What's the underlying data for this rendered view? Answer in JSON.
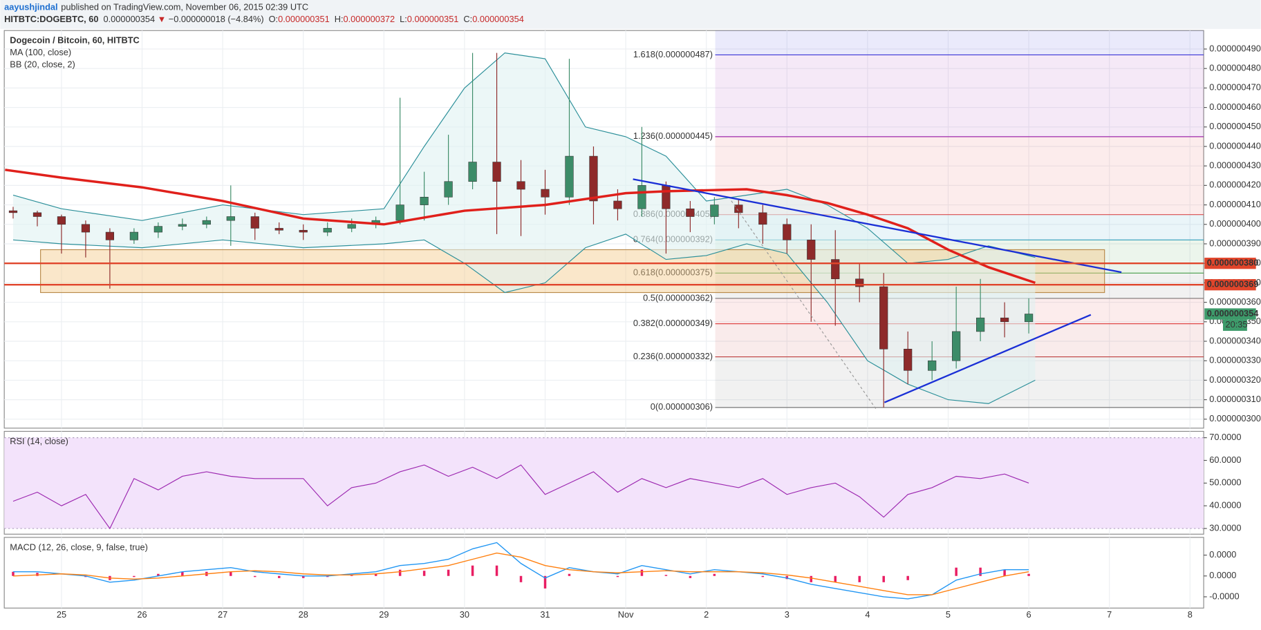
{
  "header": {
    "author": "aayushjindal",
    "published": "published on TradingView.com, November 06, 2015 02:39 UTC",
    "symbol": "HITBTC:DOGEBTC, 60",
    "last": "0.000000354",
    "direction": "▼",
    "change": "−0.000000018 (−4.84%)",
    "ohlc": [
      {
        "label": "O:",
        "value": "0.000000351"
      },
      {
        "label": "H:",
        "value": "0.000000372"
      },
      {
        "label": "L:",
        "value": "0.000000351"
      },
      {
        "label": "C:",
        "value": "0.000000354"
      }
    ]
  },
  "chart_data": [
    {
      "type": "candlestick",
      "title": "Dogecoin / Bitcoin, 60, HITBTC",
      "xlim": [
        -0.71,
        14.17
      ],
      "xticks": [
        {
          "value": 0,
          "label": "25"
        },
        {
          "value": 1,
          "label": "26"
        },
        {
          "value": 2,
          "label": "27"
        },
        {
          "value": 3,
          "label": "28"
        },
        {
          "value": 4,
          "label": "29"
        },
        {
          "value": 5,
          "label": "30"
        },
        {
          "value": 6,
          "label": "31"
        },
        {
          "value": 7,
          "label": "Nov"
        },
        {
          "value": 8,
          "label": "2"
        },
        {
          "value": 9,
          "label": "3"
        },
        {
          "value": 10,
          "label": "4"
        },
        {
          "value": 11,
          "label": "5"
        },
        {
          "value": 12,
          "label": "6"
        },
        {
          "value": 13,
          "label": "7"
        },
        {
          "value": 14,
          "label": "8"
        }
      ],
      "ylim": [
        2.954e-07,
        4.995e-07
      ],
      "yticks": [
        {
          "value": 3e-07,
          "label": "0.000000300"
        },
        {
          "value": 3.1e-07,
          "label": "0.000000310"
        },
        {
          "value": 3.2e-07,
          "label": "0.000000320"
        },
        {
          "value": 3.3e-07,
          "label": "0.000000330"
        },
        {
          "value": 3.4e-07,
          "label": "0.000000340"
        },
        {
          "value": 3.5e-07,
          "label": "0.000000350"
        },
        {
          "value": 3.6e-07,
          "label": "0.000000360"
        },
        {
          "value": 3.7e-07,
          "label": "0.000000370"
        },
        {
          "value": 3.8e-07,
          "label": "0.000000380"
        },
        {
          "value": 3.9e-07,
          "label": "0.000000390"
        },
        {
          "value": 4e-07,
          "label": "0.000000400"
        },
        {
          "value": 4.1e-07,
          "label": "0.000000410"
        },
        {
          "value": 4.2e-07,
          "label": "0.000000420"
        },
        {
          "value": 4.3e-07,
          "label": "0.000000430"
        },
        {
          "value": 4.4e-07,
          "label": "0.000000440"
        },
        {
          "value": 4.5e-07,
          "label": "0.000000450"
        },
        {
          "value": 4.6e-07,
          "label": "0.000000460"
        },
        {
          "value": 4.7e-07,
          "label": "0.000000470"
        },
        {
          "value": 4.8e-07,
          "label": "0.000000480"
        },
        {
          "value": 4.9e-07,
          "label": "0.000000490"
        }
      ],
      "grid": true,
      "up_color": "#3c8c68",
      "down_color": "#8e2a2a",
      "x": [
        -0.6,
        -0.3,
        0.0,
        0.3,
        0.6,
        0.9,
        1.2,
        1.5,
        1.8,
        2.1,
        2.4,
        2.7,
        3.0,
        3.3,
        3.6,
        3.9,
        4.2,
        4.5,
        4.8,
        5.1,
        5.4,
        5.7,
        6.0,
        6.3,
        6.6,
        6.9,
        7.2,
        7.5,
        7.8,
        8.1,
        8.4,
        8.7,
        9.0,
        9.3,
        9.6,
        9.9,
        10.2,
        10.5,
        10.8,
        11.1,
        11.4,
        11.7,
        12.0
      ],
      "open": [
        4.07e-07,
        4.06e-07,
        4.04e-07,
        4e-07,
        3.96e-07,
        3.92e-07,
        3.96e-07,
        3.99e-07,
        4e-07,
        4.02e-07,
        4.04e-07,
        3.98e-07,
        3.97e-07,
        3.96e-07,
        3.98e-07,
        4e-07,
        4.02e-07,
        4.1e-07,
        4.14e-07,
        4.22e-07,
        4.32e-07,
        4.22e-07,
        4.18e-07,
        4.14e-07,
        4.35e-07,
        4.12e-07,
        4.08e-07,
        4.2e-07,
        4.08e-07,
        4.04e-07,
        4.1e-07,
        4.06e-07,
        4e-07,
        3.92e-07,
        3.82e-07,
        3.72e-07,
        3.68e-07,
        3.36e-07,
        3.25e-07,
        3.3e-07,
        3.45e-07,
        3.52e-07,
        3.5e-07
      ],
      "high": [
        4.09e-07,
        4.07e-07,
        4.05e-07,
        4.02e-07,
        3.98e-07,
        3.98e-07,
        4.01e-07,
        4.03e-07,
        4.04e-07,
        4.2e-07,
        4.06e-07,
        4.01e-07,
        4e-07,
        4.01e-07,
        4.03e-07,
        4.04e-07,
        4.65e-07,
        4.27e-07,
        4.46e-07,
        4.88e-07,
        4.88e-07,
        4.33e-07,
        4.28e-07,
        4.85e-07,
        4.4e-07,
        4.18e-07,
        4.5e-07,
        4.22e-07,
        4.12e-07,
        4.14e-07,
        4.13e-07,
        4.1e-07,
        4.03e-07,
        4e-07,
        3.97e-07,
        3.8e-07,
        3.75e-07,
        3.45e-07,
        3.4e-07,
        3.68e-07,
        3.72e-07,
        3.6e-07,
        3.62e-07
      ],
      "low": [
        4.03e-07,
        3.99e-07,
        3.85e-07,
        3.83e-07,
        3.67e-07,
        3.9e-07,
        3.93e-07,
        3.97e-07,
        3.98e-07,
        3.89e-07,
        3.92e-07,
        3.95e-07,
        3.92e-07,
        3.94e-07,
        3.96e-07,
        3.98e-07,
        4e-07,
        4.02e-07,
        4.1e-07,
        4.18e-07,
        3.95e-07,
        3.94e-07,
        4.05e-07,
        4.1e-07,
        4e-07,
        4.02e-07,
        4.04e-07,
        3.85e-07,
        3.96e-07,
        4e-07,
        3.98e-07,
        3.9e-07,
        3.85e-07,
        3.5e-07,
        3.48e-07,
        3.6e-07,
        3.06e-07,
        3.18e-07,
        3.2e-07,
        3.26e-07,
        3.4e-07,
        3.42e-07,
        3.44e-07
      ],
      "close": [
        4.06e-07,
        4.04e-07,
        4e-07,
        3.96e-07,
        3.92e-07,
        3.96e-07,
        3.99e-07,
        4e-07,
        4.02e-07,
        4.04e-07,
        3.98e-07,
        3.97e-07,
        3.96e-07,
        3.98e-07,
        4e-07,
        4.02e-07,
        4.1e-07,
        4.14e-07,
        4.22e-07,
        4.32e-07,
        4.22e-07,
        4.18e-07,
        4.14e-07,
        4.35e-07,
        4.12e-07,
        4.08e-07,
        4.2e-07,
        4.08e-07,
        4.04e-07,
        4.1e-07,
        4.06e-07,
        4e-07,
        3.92e-07,
        3.82e-07,
        3.72e-07,
        3.68e-07,
        3.36e-07,
        3.25e-07,
        3.3e-07,
        3.45e-07,
        3.52e-07,
        3.5e-07,
        3.54e-07
      ],
      "series": [
        {
          "name": "MA (100, close)",
          "color": "#e0201b",
          "x": [
            -0.7,
            0,
            1,
            2,
            3,
            4,
            5,
            6,
            7,
            7.5,
            8,
            8.5,
            9,
            9.5,
            10,
            10.5,
            11,
            11.5,
            12.08
          ],
          "values": [
            4.28e-07,
            4.24e-07,
            4.19e-07,
            4.12e-07,
            4.03e-07,
            4e-07,
            4.07e-07,
            4.1e-07,
            4.16e-07,
            4.17e-07,
            4.175e-07,
            4.18e-07,
            4.15e-07,
            4.11e-07,
            4.05e-07,
            3.98e-07,
            3.87e-07,
            3.78e-07,
            3.7e-07
          ]
        },
        {
          "name": "BB (20, close, 2)",
          "color": "#2b8f99",
          "x": [
            -0.6,
            0,
            1,
            2,
            3,
            4,
            4.5,
            5,
            5.5,
            6,
            6.5,
            7,
            7.5,
            8,
            8.5,
            9,
            9.5,
            10,
            10.5,
            11,
            11.5,
            12.08
          ],
          "upper": [
            4.15e-07,
            4.08e-07,
            4.02e-07,
            4.1e-07,
            4.05e-07,
            4.08e-07,
            4.4e-07,
            4.7e-07,
            4.88e-07,
            4.85e-07,
            4.5e-07,
            4.45e-07,
            4.35e-07,
            4.12e-07,
            4.15e-07,
            4.18e-07,
            4.1e-07,
            3.98e-07,
            3.8e-07,
            3.82e-07,
            3.89e-07,
            3.83e-07
          ],
          "lower": [
            3.92e-07,
            3.9e-07,
            3.88e-07,
            3.92e-07,
            3.88e-07,
            3.9e-07,
            3.92e-07,
            3.8e-07,
            3.65e-07,
            3.7e-07,
            3.88e-07,
            3.95e-07,
            3.82e-07,
            3.84e-07,
            3.9e-07,
            3.85e-07,
            3.6e-07,
            3.3e-07,
            3.18e-07,
            3.1e-07,
            3.08e-07,
            3.2e-07
          ]
        }
      ],
      "fib": [
        {
          "label": "1.618(0.000000487)",
          "value": 4.87e-07,
          "color": "#3434d8"
        },
        {
          "label": "1.236(0.000000445)",
          "value": 4.45e-07,
          "color": "#9c27b0"
        },
        {
          "label": "0.886(0.000000405)",
          "value": 4.05e-07,
          "color": "#e04848"
        },
        {
          "label": "0.764(0.000000392)",
          "value": 3.92e-07,
          "color": "#2e9dc0"
        },
        {
          "label": "0.618(0.000000375)",
          "value": 3.75e-07,
          "color": "#43a047"
        },
        {
          "label": "0.5(0.000000362)",
          "value": 3.62e-07,
          "color": "#777777"
        },
        {
          "label": "0.382(0.000000349)",
          "value": 3.49e-07,
          "color": "#e04848"
        },
        {
          "label": "0.236(0.000000332)",
          "value": 3.32e-07,
          "color": "#c23b3b"
        },
        {
          "label": "0(0.000000306)",
          "value": 3.06e-07,
          "color": "#777777"
        }
      ],
      "fib_start": 8.11,
      "zone": {
        "x": [
          -0.26,
          12.94
        ],
        "y": [
          3.65e-07,
          3.87e-07
        ],
        "color": "#f3c98a"
      },
      "trendlines": [
        {
          "x": [
            7.09,
            13.15
          ],
          "y": [
            4.232e-07,
            3.754e-07
          ],
          "color": "#1a2fd6"
        },
        {
          "x": [
            10.21,
            12.77
          ],
          "y": [
            3.086e-07,
            3.536e-07
          ],
          "color": "#1a2fd6"
        },
        {
          "x": [
            8.31,
            10.11
          ],
          "y": [
            4.121e-07,
            3.049e-07
          ],
          "color": "#999999",
          "dashed": true
        }
      ],
      "price_tags": [
        {
          "value": 3.8e-07,
          "label": "0.000000380",
          "color": "#e0452b"
        },
        {
          "value": 3.69e-07,
          "label": "0.000000369",
          "color": "#e0452b"
        },
        {
          "value": 3.54e-07,
          "label": "0.000000354",
          "color": "#3d9a6a"
        }
      ],
      "countdown": "20:35"
    },
    {
      "type": "line",
      "title": "RSI (14, close)",
      "xlim": [
        -0.71,
        14.17
      ],
      "ylim": [
        27.5,
        72.8
      ],
      "yticks": [
        {
          "value": 30,
          "label": "30.0000"
        },
        {
          "value": 40,
          "label": "40.0000"
        },
        {
          "value": 50,
          "label": "50.0000"
        },
        {
          "value": 60,
          "label": "60.0000"
        },
        {
          "value": 70,
          "label": "70.0000"
        }
      ],
      "band": [
        30,
        70
      ],
      "band_color": "#f3e3fb",
      "series": [
        {
          "name": "RSI",
          "color": "#9c27b0",
          "x": [
            -0.6,
            -0.3,
            0.0,
            0.3,
            0.6,
            0.9,
            1.2,
            1.5,
            1.8,
            2.1,
            2.4,
            2.7,
            3.0,
            3.3,
            3.6,
            3.9,
            4.2,
            4.5,
            4.8,
            5.1,
            5.4,
            5.7,
            6.0,
            6.3,
            6.6,
            6.9,
            7.2,
            7.5,
            7.8,
            8.1,
            8.4,
            8.7,
            9.0,
            9.3,
            9.6,
            9.9,
            10.2,
            10.5,
            10.8,
            11.1,
            11.4,
            11.7,
            12.0
          ],
          "values": [
            42,
            46,
            40,
            45,
            30,
            52,
            47,
            53,
            55,
            53,
            52,
            52,
            52,
            40,
            48,
            50,
            55,
            58,
            53,
            57,
            52,
            58,
            45,
            50,
            55,
            46,
            52,
            48,
            52,
            50,
            48,
            52,
            45,
            48,
            50,
            44,
            35,
            45,
            48,
            53,
            52,
            54,
            50
          ]
        }
      ]
    },
    {
      "type": "macd",
      "title": "MACD (12, 26, close, 9, false, true)",
      "xlim": [
        -0.71,
        14.17
      ],
      "ylim": [
        -1.54e-09,
        1.85e-09
      ],
      "yticks": [
        {
          "value": 1e-09,
          "label": "0.0000"
        },
        {
          "value": 0,
          "label": "0.0000"
        },
        {
          "value": -1e-09,
          "label": "-0.0000"
        }
      ],
      "x": [
        -0.6,
        -0.3,
        0.0,
        0.3,
        0.6,
        0.9,
        1.2,
        1.5,
        1.8,
        2.1,
        2.4,
        2.7,
        3.0,
        3.3,
        3.6,
        3.9,
        4.2,
        4.5,
        4.8,
        5.1,
        5.4,
        5.7,
        6.0,
        6.3,
        6.6,
        6.9,
        7.2,
        7.5,
        7.8,
        8.1,
        8.4,
        8.7,
        9.0,
        9.3,
        9.6,
        9.9,
        10.2,
        10.5,
        10.8,
        11.1,
        11.4,
        11.7,
        12.0
      ],
      "series": [
        {
          "name": "MACD",
          "color": "#2196f3",
          "values": [
            2e-10,
            2e-10,
            1e-10,
            0,
            -3e-10,
            -2e-10,
            0,
            2e-10,
            3e-10,
            4e-10,
            2e-10,
            1e-10,
            0,
            0,
            1e-10,
            2e-10,
            5e-10,
            6e-10,
            8e-10,
            1.3e-09,
            1.6e-09,
            6e-10,
            -1e-10,
            4e-10,
            2e-10,
            1e-10,
            5e-10,
            3e-10,
            1e-10,
            3e-10,
            2e-10,
            1e-10,
            -1e-10,
            -4e-10,
            -6e-10,
            -8e-10,
            -1e-09,
            -1.1e-09,
            -9e-10,
            -2e-10,
            1e-10,
            3e-10,
            3e-10
          ]
        },
        {
          "name": "Signal",
          "color": "#ff7f0e",
          "values": [
            0,
            5e-11,
            1e-10,
            5e-11,
            -1e-10,
            -1.5e-10,
            -1e-10,
            0,
            1e-10,
            2e-10,
            2.5e-10,
            2e-10,
            1e-10,
            5e-11,
            5e-11,
            1e-10,
            2e-10,
            3.5e-10,
            5e-10,
            8e-10,
            1.1e-09,
            9e-10,
            5e-10,
            3e-10,
            2e-10,
            1.5e-10,
            2e-10,
            2.5e-10,
            2e-10,
            2e-10,
            2e-10,
            1.5e-10,
            5e-11,
            -1e-10,
            -3e-10,
            -5e-10,
            -7e-10,
            -9e-10,
            -9e-10,
            -6e-10,
            -3e-10,
            0,
            2e-10
          ]
        }
      ],
      "histogram": {
        "color": "#e91e63",
        "values": [
          2e-10,
          1.5e-10,
          0,
          -5e-11,
          -2e-10,
          -5e-11,
          1e-10,
          2e-10,
          2e-10,
          2e-10,
          -5e-11,
          -1e-10,
          -1e-10,
          -5e-11,
          5e-11,
          1e-10,
          3e-10,
          2.5e-10,
          3e-10,
          5e-10,
          5e-10,
          -3e-10,
          -6e-10,
          1e-10,
          0,
          -5e-11,
          3e-10,
          5e-11,
          -1e-10,
          1e-10,
          0,
          -5e-11,
          -1.5e-10,
          -3e-10,
          -3e-10,
          -3e-10,
          -3e-10,
          -2e-10,
          0,
          4e-10,
          4e-10,
          3e-10,
          1e-10
        ]
      }
    }
  ]
}
